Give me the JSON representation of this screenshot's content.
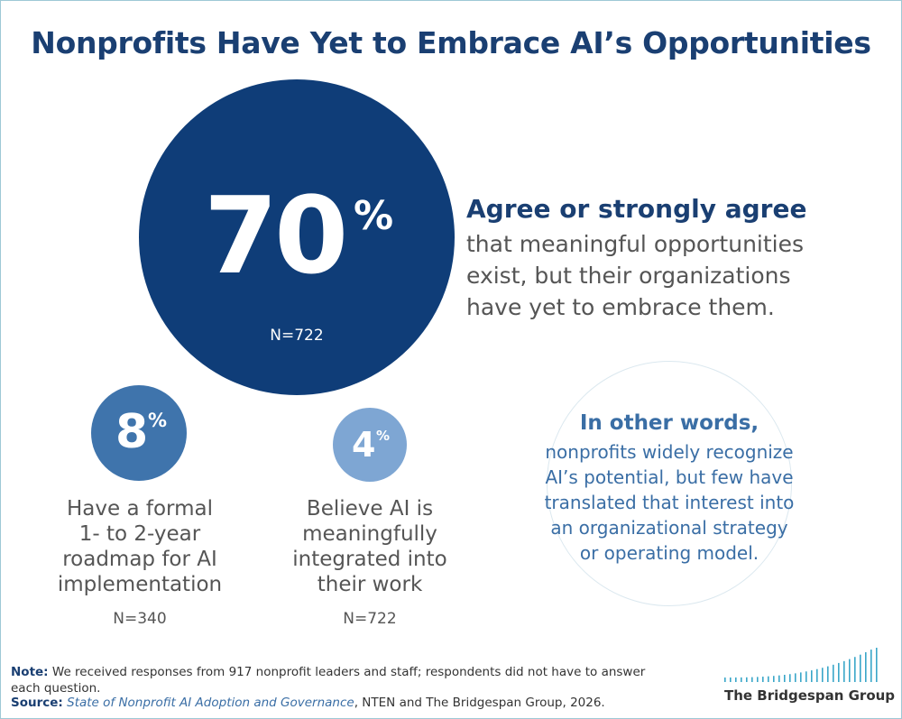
{
  "title": "Nonprofits Have Yet to Embrace AI’s Opportunities",
  "chart_data": {
    "type": "table",
    "stats": [
      {
        "value": 70,
        "unit": "%",
        "n": "N=722",
        "heading": "Agree or strongly agree",
        "text_lines": [
          "that meaningful opportunities",
          "exist, but their organizations",
          "have yet to embrace them."
        ]
      },
      {
        "value": 8,
        "unit": "%",
        "n": "N=340",
        "text_lines": [
          "Have a formal",
          "1- to 2-year",
          "roadmap for AI",
          "implementation"
        ]
      },
      {
        "value": 4,
        "unit": "%",
        "n": "N=722",
        "text_lines": [
          "Believe AI is",
          "meaningfully",
          "integrated into",
          "their work"
        ]
      }
    ]
  },
  "in_other_words": {
    "heading": "In other words,",
    "lines": [
      "nonprofits widely recognize",
      "AI’s potential, but few have",
      "translated that interest into",
      "an organizational strategy",
      "or operating model."
    ]
  },
  "note": {
    "label": "Note:",
    "text": "We received responses from 917 nonprofit leaders and staff; respondents did not have to answer each question."
  },
  "source": {
    "label": "Source:",
    "title": "State of Nonprofit AI Adoption and Governance",
    "rest": ", NTEN and The Bridgespan Group, 2026."
  },
  "logo": {
    "name": "The Bridgespan Group",
    "color": "#3aa6c9"
  },
  "colors": {
    "title": "#1a3f72",
    "big_circle": "#0f3d78",
    "circle_8": "#3f74ac",
    "circle_4": "#7ea6d3",
    "accent_text": "#3a6ea5"
  }
}
